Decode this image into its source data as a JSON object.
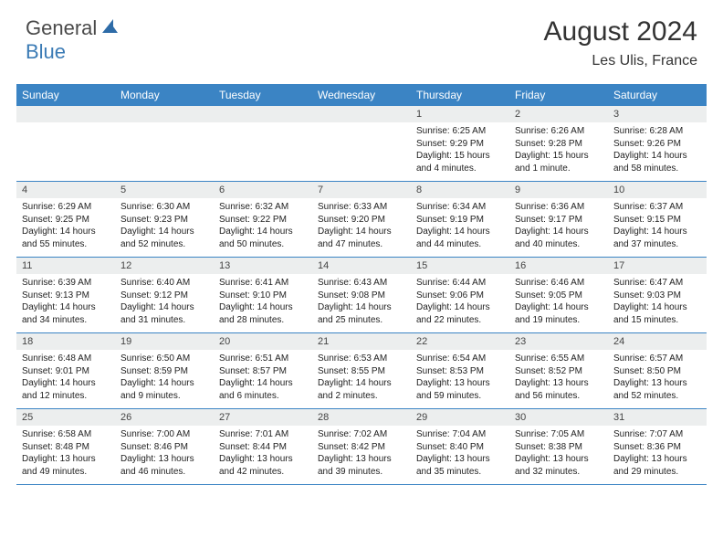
{
  "logo": {
    "part1": "General",
    "part2": "Blue"
  },
  "title": "August 2024",
  "location": "Les Ulis, France",
  "colors": {
    "header_bg": "#3b84c4",
    "date_bg": "#eceeee",
    "logo_gray": "#4a4a4a",
    "logo_blue": "#3b7bb5",
    "border": "#3b84c4"
  },
  "day_headers": [
    "Sunday",
    "Monday",
    "Tuesday",
    "Wednesday",
    "Thursday",
    "Friday",
    "Saturday"
  ],
  "weeks": [
    [
      null,
      null,
      null,
      null,
      {
        "d": "1",
        "sr": "6:25 AM",
        "ss": "9:29 PM",
        "dl": "15 hours and 4 minutes."
      },
      {
        "d": "2",
        "sr": "6:26 AM",
        "ss": "9:28 PM",
        "dl": "15 hours and 1 minute."
      },
      {
        "d": "3",
        "sr": "6:28 AM",
        "ss": "9:26 PM",
        "dl": "14 hours and 58 minutes."
      }
    ],
    [
      {
        "d": "4",
        "sr": "6:29 AM",
        "ss": "9:25 PM",
        "dl": "14 hours and 55 minutes."
      },
      {
        "d": "5",
        "sr": "6:30 AM",
        "ss": "9:23 PM",
        "dl": "14 hours and 52 minutes."
      },
      {
        "d": "6",
        "sr": "6:32 AM",
        "ss": "9:22 PM",
        "dl": "14 hours and 50 minutes."
      },
      {
        "d": "7",
        "sr": "6:33 AM",
        "ss": "9:20 PM",
        "dl": "14 hours and 47 minutes."
      },
      {
        "d": "8",
        "sr": "6:34 AM",
        "ss": "9:19 PM",
        "dl": "14 hours and 44 minutes."
      },
      {
        "d": "9",
        "sr": "6:36 AM",
        "ss": "9:17 PM",
        "dl": "14 hours and 40 minutes."
      },
      {
        "d": "10",
        "sr": "6:37 AM",
        "ss": "9:15 PM",
        "dl": "14 hours and 37 minutes."
      }
    ],
    [
      {
        "d": "11",
        "sr": "6:39 AM",
        "ss": "9:13 PM",
        "dl": "14 hours and 34 minutes."
      },
      {
        "d": "12",
        "sr": "6:40 AM",
        "ss": "9:12 PM",
        "dl": "14 hours and 31 minutes."
      },
      {
        "d": "13",
        "sr": "6:41 AM",
        "ss": "9:10 PM",
        "dl": "14 hours and 28 minutes."
      },
      {
        "d": "14",
        "sr": "6:43 AM",
        "ss": "9:08 PM",
        "dl": "14 hours and 25 minutes."
      },
      {
        "d": "15",
        "sr": "6:44 AM",
        "ss": "9:06 PM",
        "dl": "14 hours and 22 minutes."
      },
      {
        "d": "16",
        "sr": "6:46 AM",
        "ss": "9:05 PM",
        "dl": "14 hours and 19 minutes."
      },
      {
        "d": "17",
        "sr": "6:47 AM",
        "ss": "9:03 PM",
        "dl": "14 hours and 15 minutes."
      }
    ],
    [
      {
        "d": "18",
        "sr": "6:48 AM",
        "ss": "9:01 PM",
        "dl": "14 hours and 12 minutes."
      },
      {
        "d": "19",
        "sr": "6:50 AM",
        "ss": "8:59 PM",
        "dl": "14 hours and 9 minutes."
      },
      {
        "d": "20",
        "sr": "6:51 AM",
        "ss": "8:57 PM",
        "dl": "14 hours and 6 minutes."
      },
      {
        "d": "21",
        "sr": "6:53 AM",
        "ss": "8:55 PM",
        "dl": "14 hours and 2 minutes."
      },
      {
        "d": "22",
        "sr": "6:54 AM",
        "ss": "8:53 PM",
        "dl": "13 hours and 59 minutes."
      },
      {
        "d": "23",
        "sr": "6:55 AM",
        "ss": "8:52 PM",
        "dl": "13 hours and 56 minutes."
      },
      {
        "d": "24",
        "sr": "6:57 AM",
        "ss": "8:50 PM",
        "dl": "13 hours and 52 minutes."
      }
    ],
    [
      {
        "d": "25",
        "sr": "6:58 AM",
        "ss": "8:48 PM",
        "dl": "13 hours and 49 minutes."
      },
      {
        "d": "26",
        "sr": "7:00 AM",
        "ss": "8:46 PM",
        "dl": "13 hours and 46 minutes."
      },
      {
        "d": "27",
        "sr": "7:01 AM",
        "ss": "8:44 PM",
        "dl": "13 hours and 42 minutes."
      },
      {
        "d": "28",
        "sr": "7:02 AM",
        "ss": "8:42 PM",
        "dl": "13 hours and 39 minutes."
      },
      {
        "d": "29",
        "sr": "7:04 AM",
        "ss": "8:40 PM",
        "dl": "13 hours and 35 minutes."
      },
      {
        "d": "30",
        "sr": "7:05 AM",
        "ss": "8:38 PM",
        "dl": "13 hours and 32 minutes."
      },
      {
        "d": "31",
        "sr": "7:07 AM",
        "ss": "8:36 PM",
        "dl": "13 hours and 29 minutes."
      }
    ]
  ],
  "labels": {
    "sunrise": "Sunrise: ",
    "sunset": "Sunset: ",
    "daylight": "Daylight: "
  }
}
